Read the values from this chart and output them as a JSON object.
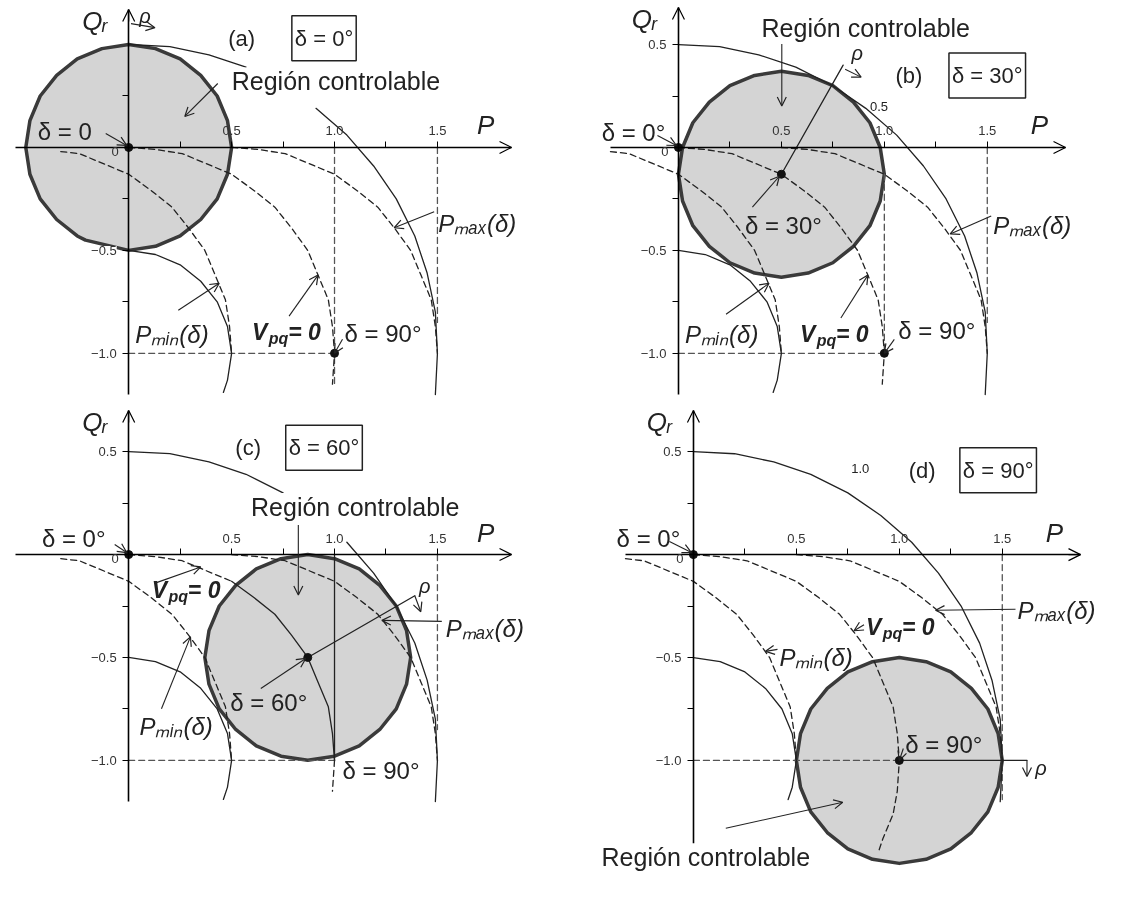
{
  "chart_data": [
    {
      "type": "line",
      "title": "(a)",
      "subtitle": "δ = 0°",
      "xlabel": "P",
      "ylabel": "Qᵣ",
      "xlim": [
        -0.55,
        1.86
      ],
      "ylim": [
        -1.2,
        0.67
      ],
      "xticks": [
        {
          "value": 0.25,
          "label": null
        },
        {
          "value": 0.5,
          "label": "0.5"
        },
        {
          "value": 0.75,
          "label": null
        },
        {
          "value": 1,
          "label": "1.0"
        },
        {
          "value": 1.25,
          "label": null
        },
        {
          "value": 1.5,
          "label": "1.5"
        }
      ],
      "yticks": [
        {
          "value": -1,
          "label": "−1.0"
        },
        {
          "value": -0.75,
          "label": null
        },
        {
          "value": -0.5,
          "label": "−0.5"
        },
        {
          "value": -0.25,
          "label": null
        },
        {
          "value": 0,
          "label": "0"
        },
        {
          "value": 0.25,
          "label": null
        }
      ],
      "series": [
        {
          "type": "area",
          "color": "#d4d4d4",
          "x": [
            0.5,
            0.48,
            0.43,
            0.35,
            0.25,
            0.13,
            0,
            -0.13,
            -0.25,
            -0.35,
            -0.43,
            -0.48,
            -0.5,
            -0.48,
            -0.43,
            -0.35,
            -0.25,
            -0.21,
            0,
            0.13,
            0.25,
            0.35,
            0.43,
            0.48
          ],
          "values": [
            0,
            0.13,
            0.25,
            0.35,
            0.43,
            0.48,
            0.5,
            0.48,
            0.43,
            0.35,
            0.25,
            0.13,
            0,
            -0.13,
            -0.25,
            -0.35,
            -0.43,
            -0.45,
            -0.5,
            -0.48,
            -0.43,
            -0.35,
            -0.25,
            -0.13
          ]
        },
        {
          "color": "#555555",
          "line_style": "dashed",
          "x": [
            1,
            1
          ],
          "values": [
            0,
            -1.15
          ]
        },
        {
          "color": "#555555",
          "line_style": "dashed",
          "x": [
            1.5,
            1.5
          ],
          "values": [
            0,
            -0.85
          ]
        },
        {
          "color": "#555555",
          "line_style": "dashed",
          "x": [
            0,
            1
          ],
          "values": [
            -1,
            -1
          ]
        },
        {
          "color": "#222222",
          "line_style": "solid",
          "x": [
            0,
            0.2,
            0.39,
            0.57,
            0.75,
            0.91,
            1.06,
            1.19,
            1.3,
            1.39,
            1.45,
            1.49,
            1.5,
            1.49
          ],
          "values": [
            0.5,
            0.49,
            0.45,
            0.39,
            null,
            0.19,
            0.06,
            -0.09,
            -0.25,
            -0.43,
            -0.61,
            -0.8,
            -1.0,
            -1.2
          ]
        },
        {
          "color": "#222222",
          "line_style": "solid",
          "x": [
            0,
            0.13,
            0.25,
            0.35,
            0.43,
            0.48,
            0.5,
            0.48,
            0.46
          ],
          "values": [
            -0.5,
            -0.52,
            -0.57,
            -0.65,
            -0.75,
            -0.87,
            -1.0,
            -1.13,
            -1.19
          ]
        },
        {
          "color": "#222222",
          "line_style": "dashed",
          "x": [
            0,
            0.13,
            0.26,
            0.38,
            0.5,
            0.61,
            0.71,
            0.79,
            0.87,
            0.92,
            0.97,
            0.99,
            1.0,
            0.99
          ],
          "values": [
            0,
            -0.01,
            -0.03,
            -0.08,
            -0.13,
            -0.21,
            -0.29,
            -0.39,
            -0.5,
            -0.62,
            -0.74,
            -0.87,
            -1.0,
            -1.15
          ]
        },
        {
          "color": "#222222",
          "line_style": "dashed",
          "x": [
            0.5,
            0.63,
            0.76,
            0.88,
            1.0,
            1.11,
            1.21,
            1.29,
            1.37,
            1.42,
            1.47,
            1.49,
            1.5
          ],
          "values": [
            0,
            -0.01,
            -0.03,
            -0.08,
            -0.13,
            -0.21,
            -0.29,
            -0.39,
            -0.5,
            -0.62,
            -0.74,
            -0.87,
            -1.0
          ]
        },
        {
          "color": "#222222",
          "line_style": "dashed",
          "x": [
            -0.33,
            -0.24,
            -0.12,
            0,
            0.11,
            0.21,
            0.29,
            0.37,
            0.42,
            0.47,
            0.49,
            0.5
          ],
          "values": [
            -0.02,
            -0.03,
            -0.08,
            -0.13,
            -0.21,
            -0.29,
            -0.39,
            -0.5,
            -0.62,
            -0.74,
            -0.87,
            -1.0
          ]
        },
        {
          "type": "scatter",
          "marker": "circle",
          "color": "#111111",
          "x": [
            0,
            1
          ],
          "values": [
            0,
            -1
          ]
        }
      ],
      "annotations": [
        "Región controlable",
        {
          "text": "δ = 0",
          "x": 0,
          "y": 0
        },
        {
          "text": "Pₘₐₓ(δ)",
          "x": 1.29,
          "y": -0.39
        },
        {
          "text": "Pₘᵢₙ(δ)",
          "x": 0.44,
          "y": -0.66
        },
        {
          "text": "V$_{pq}$= 0",
          "x": 0.92,
          "y": -0.62
        },
        {
          "text": "δ = 90°",
          "x": 1,
          "y": -1
        },
        "ρ"
      ]
    },
    {
      "type": "line",
      "title": "(b)",
      "subtitle": "δ = 30°",
      "xlabel": "P",
      "ylabel": "Qᵣ",
      "xlim": [
        -0.33,
        1.88
      ],
      "ylim": [
        -1.2,
        0.68
      ],
      "xticks": [
        {
          "value": 0.25,
          "label": null
        },
        {
          "value": 0.5,
          "label": "0.5"
        },
        {
          "value": 0.75,
          "label": null
        },
        {
          "value": 1,
          "label": "1.0"
        },
        {
          "value": 1.25,
          "label": null
        },
        {
          "value": 1.5,
          "label": "1.5"
        }
      ],
      "yticks": [
        {
          "value": -1,
          "label": "−1.0"
        },
        {
          "value": -0.75,
          "label": null
        },
        {
          "value": -0.5,
          "label": "−0.5"
        },
        {
          "value": -0.25,
          "label": null
        },
        {
          "value": 0,
          "label": "0"
        },
        {
          "value": 0.25,
          "label": null
        },
        {
          "value": 0.5,
          "label": "0.5"
        }
      ],
      "series": [
        {
          "type": "area",
          "color": "#d4d4d4",
          "x": [
            1.0,
            0.98,
            0.93,
            0.85,
            0.75,
            0.63,
            0.5,
            0.37,
            0.25,
            0.15,
            0.07,
            0.02,
            0.0,
            0.02,
            0.07,
            0.15,
            0.25,
            0.37,
            0.5,
            0.63,
            0.75,
            0.85,
            0.93,
            0.98
          ],
          "values": [
            -0.13,
            0.0,
            0.12,
            0.22,
            0.3,
            0.35,
            0.37,
            0.35,
            0.3,
            0.22,
            0.12,
            0.0,
            -0.13,
            -0.26,
            -0.38,
            -0.48,
            -0.56,
            -0.61,
            -0.63,
            -0.61,
            -0.56,
            -0.48,
            -0.38,
            -0.26
          ]
        },
        {
          "color": "#555555",
          "line_style": "dashed",
          "x": [
            1,
            1
          ],
          "values": [
            -0.13,
            -1.0
          ]
        },
        {
          "color": "#555555",
          "line_style": "dashed",
          "x": [
            1.5,
            1.5
          ],
          "values": [
            0,
            -0.85
          ]
        },
        {
          "color": "#555555",
          "line_style": "dashed",
          "x": [
            0,
            1
          ],
          "values": [
            -1,
            -1
          ]
        },
        {
          "color": "#222222",
          "line_style": "solid",
          "x": [
            0,
            0.2,
            0.39,
            0.57,
            0.75,
            0.91,
            1.06,
            1.19,
            1.3,
            1.39,
            1.45,
            1.49,
            1.5,
            1.49
          ],
          "values": [
            0.5,
            0.49,
            0.45,
            0.39,
            0.3,
            0.19,
            0.06,
            -0.09,
            -0.25,
            -0.43,
            -0.61,
            -0.8,
            -1.0,
            -1.2
          ]
        },
        {
          "color": "#222222",
          "line_style": "solid",
          "x": [
            0,
            0.13,
            0.25,
            0.35,
            0.43,
            0.48,
            0.5,
            0.48,
            0.46
          ],
          "values": [
            -0.5,
            -0.52,
            -0.57,
            -0.65,
            -0.75,
            -0.87,
            -1.0,
            -1.13,
            -1.19
          ]
        },
        {
          "color": "#222222",
          "line_style": "dashed",
          "x": [
            0,
            0.13,
            0.26,
            0.38,
            0.5,
            0.61,
            0.71,
            0.79,
            0.87,
            0.92,
            0.97,
            0.99,
            1.0,
            0.99
          ],
          "values": [
            0,
            -0.01,
            -0.03,
            -0.08,
            -0.13,
            -0.21,
            -0.29,
            -0.39,
            -0.5,
            -0.62,
            -0.74,
            -0.87,
            -1.0,
            -1.15
          ]
        },
        {
          "color": "#222222",
          "line_style": "dashed",
          "x": [
            0.5,
            0.63,
            0.76,
            0.88,
            1.0,
            1.11,
            1.21,
            1.29,
            1.37,
            1.42,
            1.47,
            1.49,
            1.5
          ],
          "values": [
            0,
            -0.01,
            -0.03,
            -0.08,
            -0.13,
            -0.21,
            -0.29,
            -0.39,
            -0.5,
            -0.62,
            -0.74,
            -0.87,
            -1.0
          ]
        },
        {
          "color": "#222222",
          "line_style": "dashed",
          "x": [
            -0.33,
            -0.24,
            -0.12,
            0,
            0.11,
            0.21,
            0.29,
            0.37,
            0.42,
            0.47,
            0.49,
            0.5
          ],
          "values": [
            -0.02,
            -0.03,
            -0.08,
            -0.13,
            -0.21,
            -0.29,
            -0.39,
            -0.5,
            -0.62,
            -0.74,
            -0.87,
            -1.0
          ]
        },
        {
          "color": "#222222",
          "line_style": "solid",
          "x": [
            0.5,
            0.8
          ],
          "values": [
            -0.13,
            0.4
          ]
        },
        {
          "type": "scatter",
          "marker": "circle",
          "color": "#111111",
          "x": [
            0,
            0.5,
            1
          ],
          "values": [
            0,
            -0.13,
            -1
          ]
        }
      ],
      "annotations": [
        "Región controlable",
        {
          "text": "δ = 0°",
          "x": 0,
          "y": 0
        },
        {
          "text": "δ = 30°",
          "x": 0.5,
          "y": -0.13
        },
        {
          "text": "Pₘₐₓ(δ)",
          "x": 1.32,
          "y": -0.42
        },
        {
          "text": "Pₘᵢₙ(δ)",
          "x": 0.44,
          "y": -0.66
        },
        {
          "text": "V$_{pq}$= 0",
          "x": 0.92,
          "y": -0.62
        },
        {
          "text": "δ = 90°",
          "x": 1,
          "y": -1
        },
        {
          "text": "ρ",
          "x": 0.8,
          "y": 0.4
        },
        "0.5"
      ]
    },
    {
      "type": "line",
      "title": "(c)",
      "subtitle": "δ = 60°",
      "xlabel": "P",
      "ylabel": "Qᵣ",
      "xlim": [
        -0.55,
        1.86
      ],
      "ylim": [
        -1.2,
        0.7
      ],
      "xticks": [
        {
          "value": 0.25,
          "label": null
        },
        {
          "value": 0.5,
          "label": "0.5"
        },
        {
          "value": 0.75,
          "label": null
        },
        {
          "value": 1,
          "label": "1.0"
        },
        {
          "value": 1.25,
          "label": null
        },
        {
          "value": 1.5,
          "label": "1.5"
        }
      ],
      "yticks": [
        {
          "value": -1,
          "label": "−1.0"
        },
        {
          "value": -0.75,
          "label": null
        },
        {
          "value": -0.5,
          "label": "−0.5"
        },
        {
          "value": -0.25,
          "label": null
        },
        {
          "value": 0,
          "label": "0"
        },
        {
          "value": 0.25,
          "label": null
        },
        {
          "value": 0.5,
          "label": "0.5"
        }
      ],
      "series": [
        {
          "type": "area",
          "color": "#d4d4d4",
          "x": [
            1.37,
            1.35,
            1.3,
            1.22,
            1.12,
            1.0,
            0.87,
            0.74,
            0.62,
            0.52,
            0.44,
            0.39,
            0.37,
            0.39,
            0.44,
            0.52,
            0.62,
            0.74,
            0.87,
            1.0,
            1.12,
            1.22,
            1.3,
            1.35
          ],
          "values": [
            -0.5,
            -0.37,
            -0.25,
            -0.15,
            -0.07,
            -0.02,
            0.0,
            -0.02,
            -0.07,
            -0.15,
            -0.25,
            -0.37,
            -0.5,
            -0.63,
            -0.75,
            -0.85,
            -0.93,
            -0.98,
            -1.0,
            -0.98,
            -0.93,
            -0.85,
            -0.75,
            -0.63
          ]
        },
        {
          "color": "#222222",
          "line_style": "solid",
          "x": [
            1,
            1
          ],
          "values": [
            0,
            -1.0
          ]
        },
        {
          "color": "#555555",
          "line_style": "dashed",
          "x": [
            1.5,
            1.5
          ],
          "values": [
            0,
            -0.85
          ]
        },
        {
          "color": "#555555",
          "line_style": "dashed",
          "x": [
            0,
            1
          ],
          "values": [
            -1,
            -1
          ]
        },
        {
          "color": "#222222",
          "line_style": "solid",
          "x": [
            0,
            0.2,
            0.39,
            0.57,
            0.75,
            0.91,
            1.06,
            1.19,
            1.3,
            1.39,
            1.45,
            1.49,
            1.5,
            1.49
          ],
          "values": [
            0.5,
            0.49,
            0.45,
            0.39,
            0.3,
            null,
            0.06,
            -0.09,
            -0.25,
            -0.43,
            -0.61,
            -0.8,
            -1.0,
            -1.2
          ]
        },
        {
          "color": "#222222",
          "line_style": "solid",
          "x": [
            0,
            0.13,
            0.25,
            0.35,
            0.43,
            0.48,
            0.5,
            0.48,
            0.46
          ],
          "values": [
            -0.5,
            -0.52,
            -0.57,
            -0.65,
            -0.75,
            -0.87,
            -1.0,
            -1.13,
            -1.19
          ]
        },
        {
          "color": "#222222",
          "line_style": "dashed",
          "x": [
            0,
            0.13,
            0.26,
            0.38,
            0.5
          ],
          "values": [
            0,
            -0.01,
            -0.03,
            -0.08,
            -0.13
          ]
        },
        {
          "color": "#222222",
          "line_style": "solid",
          "x": [
            0.5,
            0.61,
            0.71,
            0.79,
            0.87,
            0.92,
            0.97,
            0.99,
            1.0
          ],
          "values": [
            -0.13,
            -0.21,
            -0.29,
            -0.39,
            -0.5,
            -0.62,
            -0.74,
            -0.87,
            -1.0
          ]
        },
        {
          "color": "#222222",
          "line_style": "dashed",
          "x": [
            1.0,
            0.99
          ],
          "values": [
            -1.0,
            -1.15
          ]
        },
        {
          "color": "#222222",
          "line_style": "dashed",
          "x": [
            0.5,
            0.63,
            0.76,
            0.88,
            1.0,
            1.11,
            1.21,
            1.29,
            1.37,
            1.42,
            1.47,
            1.49,
            1.5
          ],
          "values": [
            0,
            -0.01,
            -0.03,
            -0.08,
            -0.13,
            -0.21,
            -0.29,
            -0.39,
            -0.5,
            -0.62,
            -0.74,
            -0.87,
            -1.0
          ]
        },
        {
          "color": "#222222",
          "line_style": "dashed",
          "x": [
            -0.33,
            -0.24,
            -0.12,
            0,
            0.11,
            0.21,
            0.29,
            0.37,
            0.42,
            0.47,
            0.49,
            0.5
          ],
          "values": [
            -0.02,
            -0.03,
            -0.08,
            -0.13,
            -0.21,
            -0.29,
            -0.39,
            -0.5,
            -0.62,
            -0.74,
            -0.87,
            -1.0
          ]
        },
        {
          "color": "#222222",
          "line_style": "solid",
          "x": [
            0.87,
            1.39
          ],
          "values": [
            -0.5,
            -0.2
          ]
        },
        {
          "type": "scatter",
          "marker": "circle",
          "color": "#111111",
          "x": [
            0,
            0.87
          ],
          "values": [
            0,
            -0.5
          ]
        }
      ],
      "annotations": [
        "Región controlable",
        {
          "text": "δ = 0°",
          "x": 0,
          "y": 0
        },
        {
          "text": "V$_{pq}$= 0",
          "x": 0.35,
          "y": -0.06
        },
        {
          "text": "Pₘᵢₙ(δ)",
          "x": 0.3,
          "y": -0.4
        },
        {
          "text": "δ = 60°",
          "x": 0.87,
          "y": -0.5
        },
        {
          "text": "Pₘₐₓ(δ)",
          "x": 1.23,
          "y": -0.32
        },
        {
          "text": "δ = 90°",
          "x": 1,
          "y": -1
        },
        {
          "text": "ρ",
          "x": 1.39,
          "y": -0.2
        }
      ]
    },
    {
      "type": "line",
      "title": "(d)",
      "subtitle": "δ = 90°",
      "xlabel": "P",
      "ylabel": "Qᵣ",
      "xlim": [
        -0.33,
        1.88
      ],
      "ylim": [
        -1.52,
        0.7
      ],
      "xticks": [
        {
          "value": 0.25,
          "label": null
        },
        {
          "value": 0.5,
          "label": "0.5"
        },
        {
          "value": 0.75,
          "label": null
        },
        {
          "value": 1,
          "label": "1.0"
        },
        {
          "value": 1.25,
          "label": null
        },
        {
          "value": 1.5,
          "label": "1.5"
        }
      ],
      "yticks": [
        {
          "value": -1,
          "label": "−1.0"
        },
        {
          "value": -0.75,
          "label": null
        },
        {
          "value": -0.5,
          "label": "−0.5"
        },
        {
          "value": -0.25,
          "label": null
        },
        {
          "value": 0,
          "label": "0"
        },
        {
          "value": 0.25,
          "label": null
        },
        {
          "value": 0.5,
          "label": "0.5"
        }
      ],
      "series": [
        {
          "type": "area",
          "color": "#d4d4d4",
          "x": [
            1.5,
            1.48,
            1.43,
            1.35,
            1.25,
            1.13,
            1.0,
            0.87,
            0.75,
            0.65,
            0.57,
            0.52,
            0.5,
            0.52,
            0.57,
            0.65,
            0.75,
            0.87,
            1.0,
            1.13,
            1.25,
            1.35,
            1.43,
            1.48
          ],
          "values": [
            -1.0,
            -0.87,
            -0.75,
            -0.65,
            -0.57,
            -0.52,
            -0.5,
            -0.52,
            -0.57,
            -0.65,
            -0.75,
            -0.87,
            -1.0,
            -1.13,
            -1.25,
            -1.35,
            -1.43,
            -1.48,
            -1.5,
            -1.48,
            -1.43,
            -1.35,
            -1.25,
            -1.13
          ]
        },
        {
          "color": "#555555",
          "line_style": "dashed",
          "x": [
            1.5,
            1.5
          ],
          "values": [
            0,
            -1.19
          ]
        },
        {
          "color": "#555555",
          "line_style": "dashed",
          "x": [
            0,
            1
          ],
          "values": [
            -1,
            -1
          ]
        },
        {
          "color": "#222222",
          "line_style": "solid",
          "x": [
            0,
            0.2,
            0.39,
            0.57,
            0.75,
            0.91,
            1.06,
            1.19,
            1.3,
            1.39,
            1.45,
            1.49,
            1.5,
            1.49
          ],
          "values": [
            0.5,
            0.49,
            0.45,
            0.39,
            0.3,
            0.19,
            0.06,
            -0.09,
            -0.25,
            -0.43,
            -0.61,
            -0.8,
            -1.0,
            -1.2
          ]
        },
        {
          "color": "#222222",
          "line_style": "solid",
          "x": [
            0,
            0.13,
            0.25,
            0.35,
            0.43,
            0.48,
            0.5,
            0.48,
            0.46
          ],
          "values": [
            -0.5,
            -0.52,
            -0.57,
            -0.65,
            -0.75,
            -0.87,
            -1.0,
            -1.13,
            -1.19
          ]
        },
        {
          "color": "#222222",
          "line_style": "dashed",
          "x": [
            0,
            0.13,
            0.26,
            0.38,
            0.5,
            0.61,
            0.71,
            0.79,
            0.87,
            0.92,
            0.97,
            0.99,
            1.0,
            0.99,
            0.97,
            0.92,
            0.9
          ],
          "values": [
            0,
            -0.01,
            -0.03,
            -0.08,
            -0.13,
            -0.21,
            -0.29,
            -0.39,
            -0.5,
            -0.62,
            -0.74,
            -0.87,
            -1.0,
            -1.15,
            -1.26,
            -1.38,
            -1.44
          ]
        },
        {
          "color": "#222222",
          "line_style": "dashed",
          "x": [
            0.5,
            0.63,
            0.76,
            0.88,
            1.0,
            1.11,
            1.21,
            1.29,
            1.37,
            1.42,
            1.47,
            1.49,
            1.5
          ],
          "values": [
            0,
            -0.01,
            -0.03,
            -0.08,
            -0.13,
            -0.21,
            -0.29,
            -0.39,
            -0.5,
            -0.62,
            -0.74,
            -0.87,
            -1.0
          ]
        },
        {
          "color": "#222222",
          "line_style": "dashed",
          "x": [
            -0.33,
            -0.24,
            -0.12,
            0,
            0.11,
            0.21,
            0.29,
            0.37,
            0.42,
            0.47,
            0.49,
            0.5
          ],
          "values": [
            -0.02,
            -0.03,
            -0.08,
            -0.13,
            -0.21,
            -0.29,
            -0.39,
            -0.5,
            -0.62,
            -0.74,
            -0.87,
            -1.0
          ]
        },
        {
          "color": "#222222",
          "line_style": "solid",
          "x": [
            1.0,
            1.62
          ],
          "values": [
            -1.0,
            -1.0
          ]
        },
        {
          "type": "scatter",
          "marker": "circle",
          "color": "#111111",
          "x": [
            0,
            1
          ],
          "values": [
            0,
            -1
          ]
        }
      ],
      "annotations": [
        "1.0",
        {
          "text": "δ = 0°",
          "x": 0,
          "y": 0
        },
        "Pₘₐₓ(δ)",
        {
          "text": "V$_{pq}$= 0",
          "x": 0.78,
          "y": -0.37
        },
        {
          "text": "Pₘᵢₙ(δ)",
          "x": 0.35,
          "y": -0.47
        },
        {
          "text": "δ = 90°",
          "x": 1,
          "y": -1
        },
        {
          "text": "ρ",
          "x": 1.62,
          "y": -1.0
        },
        "Región controlable"
      ]
    }
  ]
}
